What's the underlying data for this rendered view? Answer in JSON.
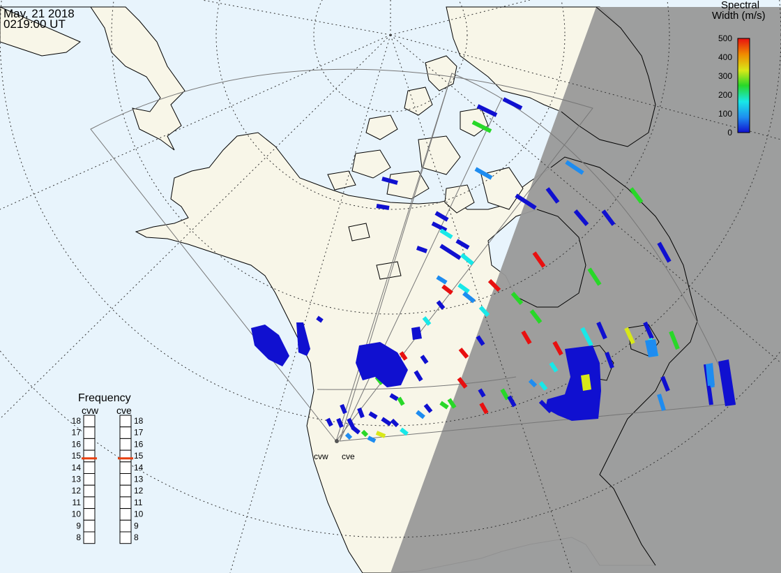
{
  "header": {
    "date": "May, 21 2018",
    "time": "0219:00 UT"
  },
  "legend": {
    "title_line1": "Spectral",
    "title_line2": "Width (m/s)",
    "ticks": [
      "0",
      "100",
      "200",
      "300",
      "400",
      "500"
    ],
    "range": [
      0,
      500
    ],
    "colors": [
      "#1010d0",
      "#1e8cf0",
      "#18e8e8",
      "#28d828",
      "#d8e818",
      "#f08c00",
      "#e81010"
    ]
  },
  "radars": {
    "west": "cvw",
    "east": "cve"
  },
  "frequency": {
    "title": "Frequency",
    "west_label": "cvw",
    "east_label": "cve",
    "levels": [
      "18",
      "17",
      "16",
      "15",
      "14",
      "13",
      "12",
      "11",
      "10",
      "9",
      "8"
    ],
    "west_value_mhz": 14.8,
    "east_value_mhz": 14.8,
    "marker_color": "#e84010"
  },
  "colors": {
    "ocean": "#e8f4fc",
    "land": "#f8f6e8",
    "night_shade": "#999999",
    "grid": "#333333",
    "fov": "#777777"
  }
}
